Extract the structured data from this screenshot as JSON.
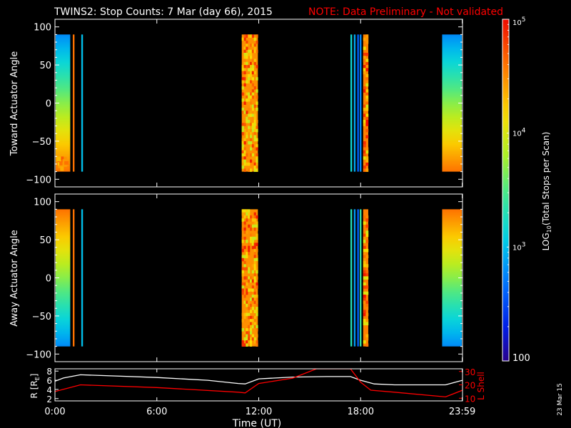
{
  "title": {
    "main": "TWINS2: Stop Counts:  7 Mar (day  66), 2015",
    "note": "NOTE: Data Preliminary - Not validated"
  },
  "date_stamp": "23 Mar 15",
  "colorbar": {
    "label": "LOG10(Total Stops per Scan)",
    "label_parts": [
      "LOG",
      "10",
      "(Total Stops per Scan)"
    ],
    "ticks": [
      {
        "value": 100,
        "text": "100"
      },
      {
        "value": 1000,
        "text": "10",
        "exp": "3"
      },
      {
        "value": 10000,
        "text": "10",
        "exp": "4"
      },
      {
        "value": 100000,
        "text": "10",
        "exp": "5"
      }
    ],
    "range": [
      100,
      100000
    ],
    "scale": "log"
  },
  "colors": {
    "background": "#000000",
    "axes": "#ffffff",
    "note": "#ff0000",
    "r_line": "#ffffff",
    "l_line": "#ff0000"
  },
  "chart_data": [
    {
      "type": "heatmap",
      "ylabel": "Toward Actuator Angle",
      "ylim": [
        -110,
        110
      ],
      "y_ticks": [
        -100,
        -50,
        0,
        50,
        100
      ],
      "y_data_range": [
        -90,
        90
      ],
      "xlim": [
        0,
        24
      ],
      "scale": "log",
      "bands": [
        {
          "t": [
            -0.05,
            0.9
          ],
          "kind": "gradient",
          "top": 600,
          "bottom": 40000,
          "low_patch": 60000
        },
        {
          "t": [
            1.05,
            1.15
          ],
          "kind": "solid",
          "value": 40000
        },
        {
          "t": [
            1.55,
            1.65
          ],
          "kind": "solid",
          "value": 1000
        },
        {
          "t": [
            11.0,
            11.95
          ],
          "kind": "noisy",
          "value": 30000
        },
        {
          "t": [
            17.4,
            17.5
          ],
          "kind": "solid",
          "value": 1500
        },
        {
          "t": [
            17.6,
            17.7
          ],
          "kind": "solid",
          "value": 800
        },
        {
          "t": [
            17.8,
            17.9
          ],
          "kind": "solid",
          "value": 400
        },
        {
          "t": [
            17.95,
            18.05
          ],
          "kind": "solid",
          "value": 600
        },
        {
          "t": [
            18.15,
            18.45
          ],
          "kind": "noisy",
          "value": 35000
        },
        {
          "t": [
            22.8,
            24.0
          ],
          "kind": "gradient",
          "top": 600,
          "bottom": 40000
        }
      ]
    },
    {
      "type": "heatmap",
      "ylabel": "Away Actuator Angle",
      "ylim": [
        -110,
        110
      ],
      "y_ticks": [
        -100,
        -50,
        0,
        50,
        100
      ],
      "y_data_range": [
        -90,
        90
      ],
      "xlim": [
        0,
        24
      ],
      "scale": "log",
      "bands": [
        {
          "t": [
            -0.05,
            0.9
          ],
          "kind": "gradient",
          "top": 40000,
          "bottom": 600
        },
        {
          "t": [
            1.05,
            1.15
          ],
          "kind": "solid",
          "value": 40000
        },
        {
          "t": [
            1.55,
            1.65
          ],
          "kind": "solid",
          "value": 1000
        },
        {
          "t": [
            11.0,
            11.95
          ],
          "kind": "noisy",
          "value": 30000
        },
        {
          "t": [
            17.4,
            17.5
          ],
          "kind": "solid",
          "value": 2000
        },
        {
          "t": [
            17.6,
            17.7
          ],
          "kind": "solid",
          "value": 700
        },
        {
          "t": [
            17.8,
            17.9
          ],
          "kind": "solid",
          "value": 400
        },
        {
          "t": [
            17.95,
            18.05
          ],
          "kind": "solid",
          "value": 2500
        },
        {
          "t": [
            18.15,
            18.45
          ],
          "kind": "noisy",
          "value": 35000
        },
        {
          "t": [
            22.8,
            24.0
          ],
          "kind": "gradient",
          "top": 40000,
          "bottom": 600
        }
      ]
    },
    {
      "type": "line",
      "xlabel": "Time (UT)",
      "xlim": [
        0,
        24
      ],
      "x_ticks": [
        {
          "value": 0,
          "text": "0:00"
        },
        {
          "value": 6,
          "text": "6:00"
        },
        {
          "value": 12,
          "text": "12:00"
        },
        {
          "value": 18,
          "text": "18:00"
        },
        {
          "value": 23.983,
          "text": "23:59"
        }
      ],
      "left_axis": {
        "label": "R [RE]",
        "label_parts": [
          "R [R",
          "E",
          "]"
        ],
        "ylim": [
          1.5,
          8.5
        ],
        "ticks": [
          2,
          4,
          6,
          8
        ]
      },
      "right_axis": {
        "label": "L Shell",
        "ylim": [
          8,
          32
        ],
        "ticks": [
          10,
          20,
          30
        ]
      },
      "series": [
        {
          "axis": "left",
          "color": "#ffffff",
          "x": [
            0,
            0.5,
            1.5,
            3,
            6,
            9,
            10.8,
            11.2,
            12,
            14,
            16,
            17.4,
            18,
            18.8,
            20,
            22,
            23,
            24
          ],
          "y": [
            5.8,
            6.5,
            7.2,
            7.0,
            6.6,
            6.0,
            5.3,
            5.2,
            6.3,
            6.7,
            6.8,
            6.8,
            6.0,
            5.2,
            5.0,
            5.0,
            5.0,
            6.0
          ]
        },
        {
          "axis": "right",
          "color": "#ff0000",
          "x": [
            0,
            0.6,
            1.5,
            6,
            10.8,
            11.2,
            12,
            14,
            15.4,
            15.8,
            17.0,
            17.4,
            18.0,
            18.6,
            20,
            23.0,
            24
          ],
          "y": [
            15,
            17,
            20,
            18,
            14.5,
            14,
            21,
            25,
            32,
            32,
            32,
            32,
            22,
            16,
            14.5,
            11,
            16
          ]
        }
      ]
    }
  ]
}
